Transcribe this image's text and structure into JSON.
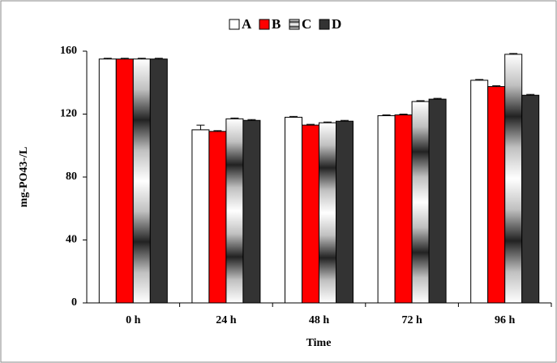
{
  "chart_data": {
    "type": "bar",
    "x_label": "Time",
    "y_label": "mg-PO43-/L",
    "categories": [
      "0 h",
      "24 h",
      "48 h",
      "72 h",
      "96 h"
    ],
    "series": [
      {
        "name": "A",
        "color": "#ffffff",
        "values": [
          155,
          110,
          118,
          119,
          141.5
        ],
        "errors": [
          0.5,
          3,
          0.5,
          0.5,
          0.5
        ]
      },
      {
        "name": "B",
        "color": "#ff0000",
        "values": [
          155,
          109,
          113,
          119.5,
          137.5
        ],
        "errors": [
          0.5,
          0.5,
          0.5,
          0.5,
          0.5
        ]
      },
      {
        "name": "C",
        "color": "#c0c0c0",
        "values": [
          155,
          117,
          114.5,
          128,
          158
        ],
        "errors": [
          0.5,
          0.5,
          0.5,
          0.5,
          0.5
        ]
      },
      {
        "name": "D",
        "color": "#333333",
        "values": [
          155,
          116,
          115.5,
          129.5,
          132
        ],
        "errors": [
          0.5,
          0.5,
          0.5,
          0.5,
          0.5
        ]
      }
    ],
    "ylim": [
      0,
      160
    ],
    "yticks": [
      0,
      40,
      80,
      120,
      160
    ],
    "legend": "top"
  }
}
